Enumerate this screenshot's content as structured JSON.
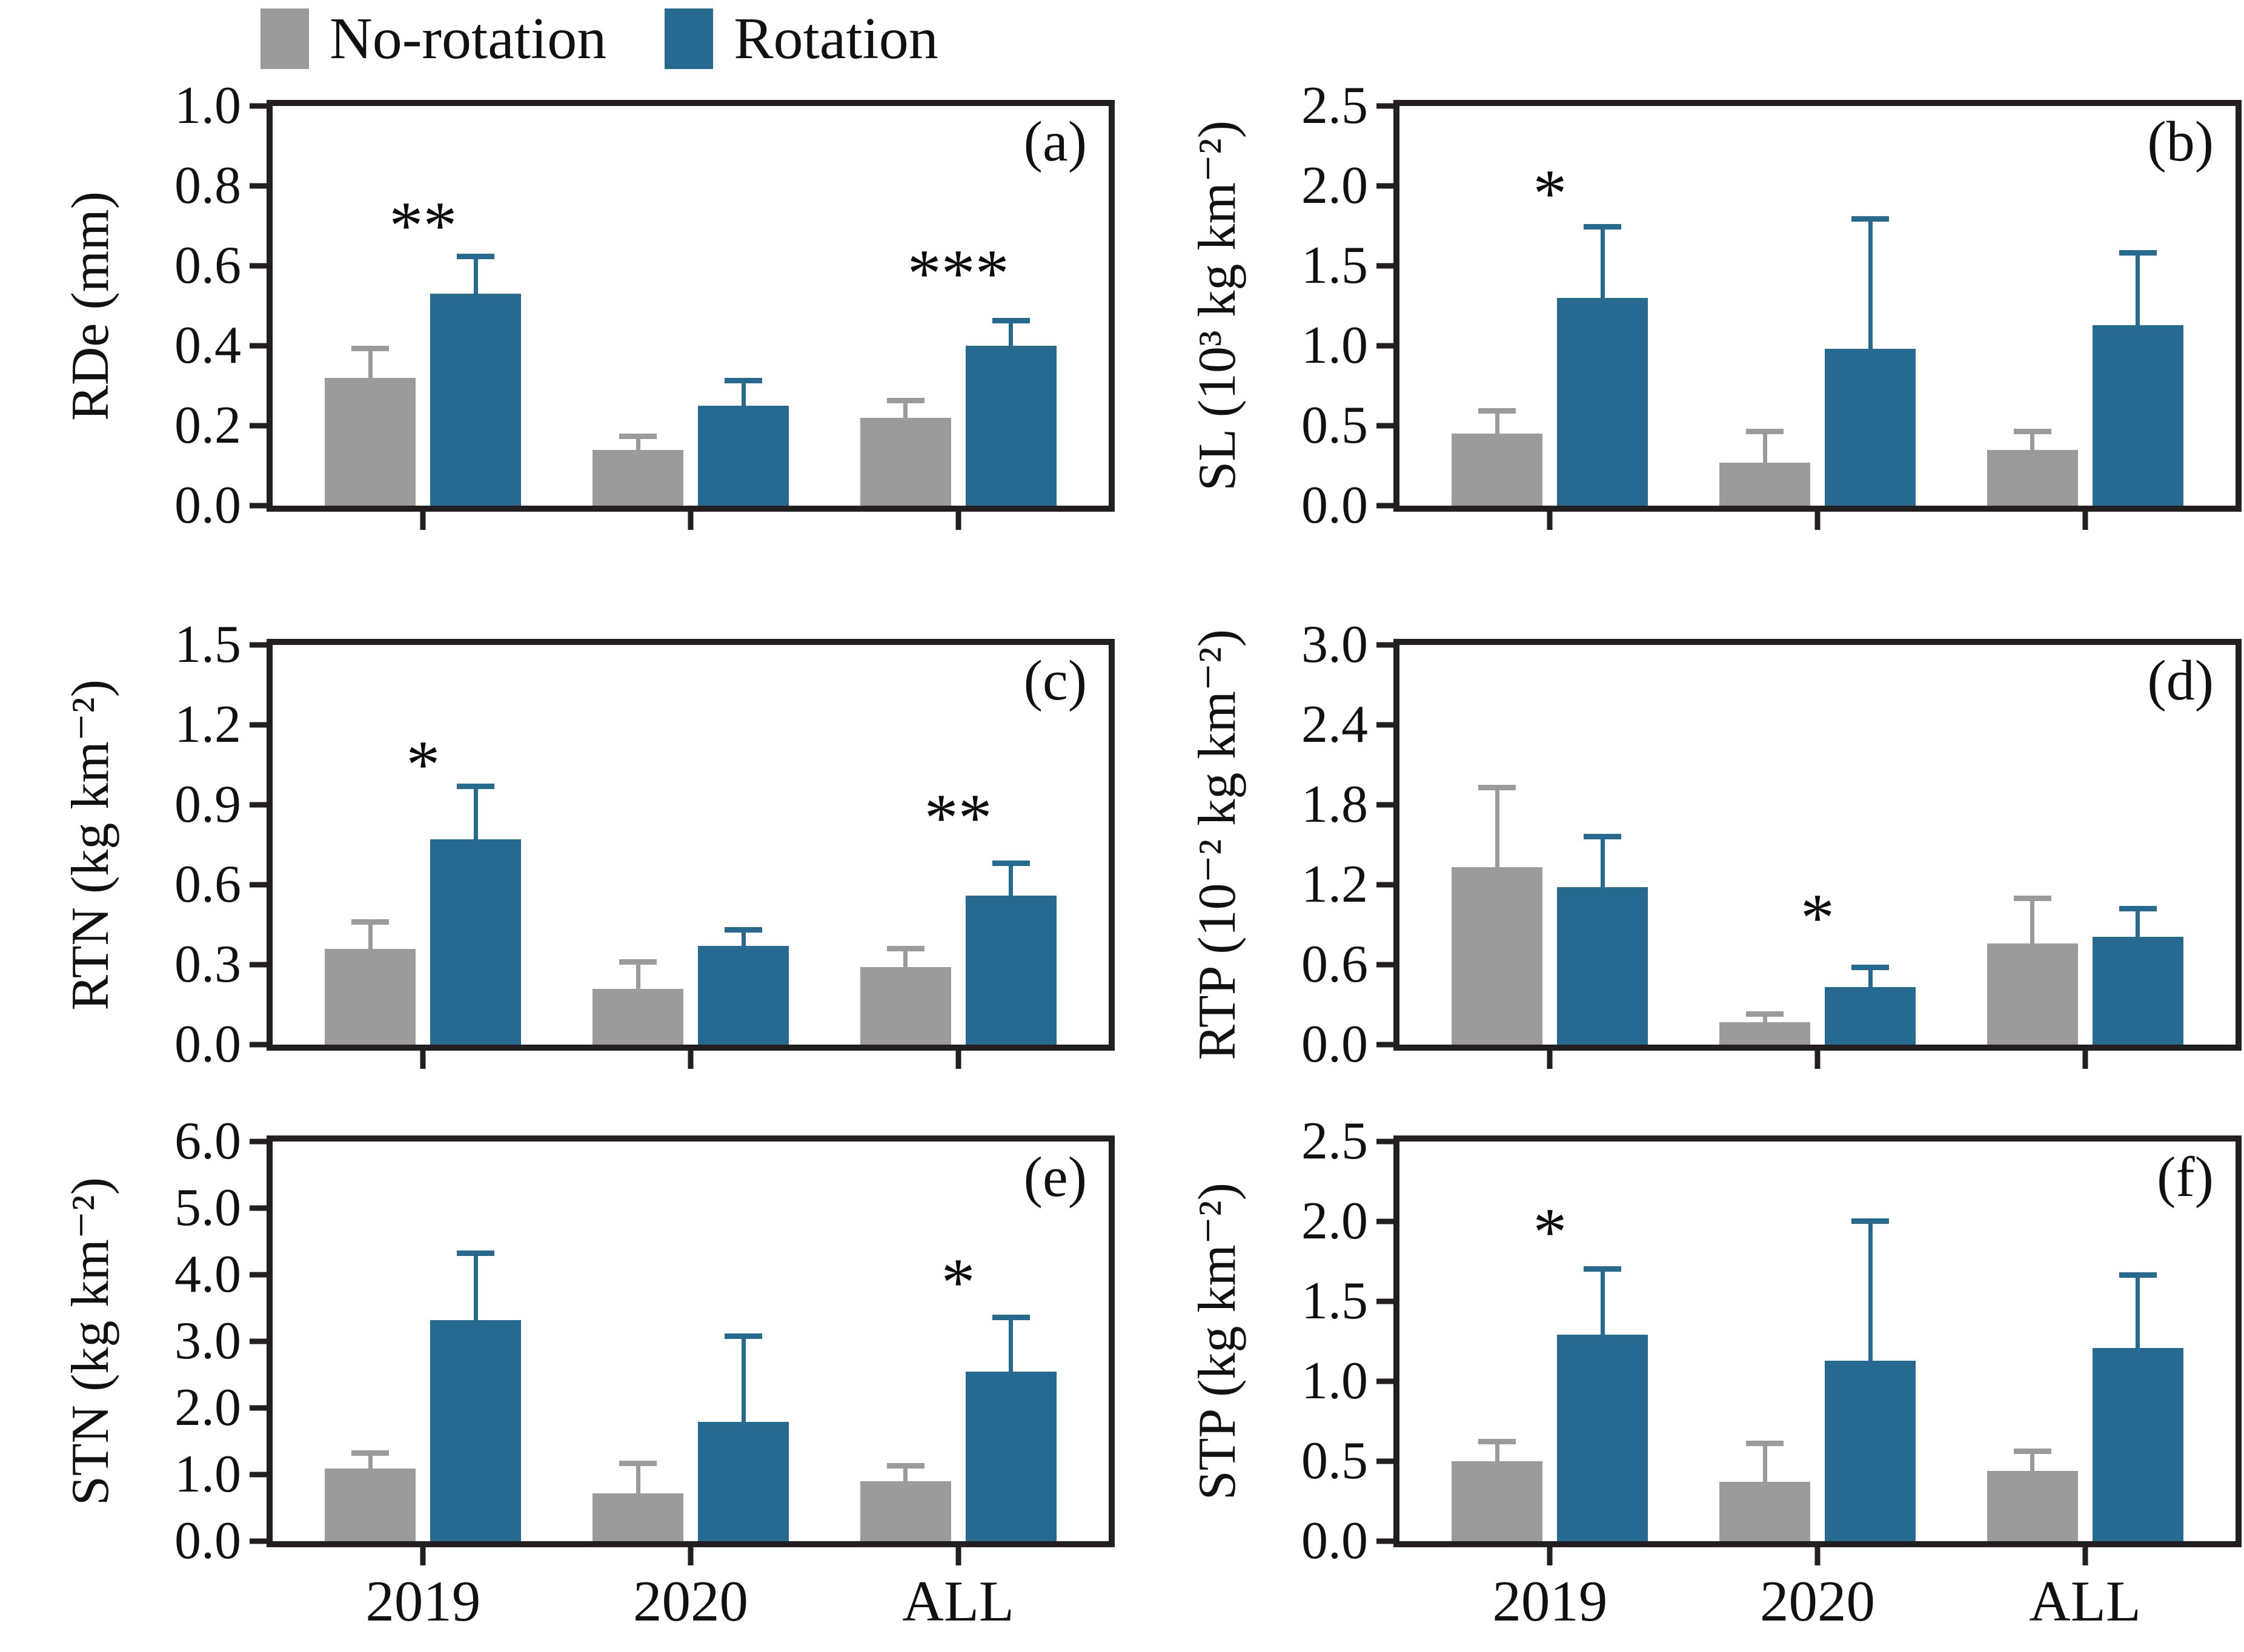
{
  "legend": {
    "items": [
      {
        "label": "No-rotation",
        "color": "#9b9b9b"
      },
      {
        "label": "Rotation",
        "color": "#266a92"
      }
    ]
  },
  "axis": {
    "frame_color": "#231f20",
    "text_color": "#111111"
  },
  "categories": [
    "2019",
    "2020",
    "ALL"
  ],
  "chart_data": [
    {
      "id": "a",
      "type": "bar",
      "panel_label": "(a)",
      "ylabel": "RDe (mm)",
      "ylim": [
        0,
        1.0
      ],
      "yticks": [
        "0.0",
        "0.2",
        "0.4",
        "0.6",
        "0.8",
        "1.0"
      ],
      "legend_position": "top-left",
      "grid": false,
      "series": [
        {
          "name": "No-rotation",
          "values": [
            0.32,
            0.14,
            0.22
          ],
          "errors": [
            0.08,
            0.04,
            0.05
          ]
        },
        {
          "name": "Rotation",
          "values": [
            0.53,
            0.25,
            0.4
          ],
          "errors": [
            0.1,
            0.07,
            0.07
          ]
        }
      ],
      "significance": [
        {
          "group": 0,
          "text": "**",
          "y": 0.7
        },
        {
          "group": 2,
          "text": "***",
          "y": 0.58
        }
      ],
      "show_xlabels": false
    },
    {
      "id": "b",
      "type": "bar",
      "panel_label": "(b)",
      "ylabel": "SL (10³ kg km⁻²)",
      "ylim": [
        0,
        2.5
      ],
      "yticks": [
        "0.0",
        "0.5",
        "1.0",
        "1.5",
        "2.0",
        "2.5"
      ],
      "grid": false,
      "series": [
        {
          "name": "No-rotation",
          "values": [
            0.45,
            0.27,
            0.35
          ],
          "errors": [
            0.16,
            0.21,
            0.13
          ]
        },
        {
          "name": "Rotation",
          "values": [
            1.3,
            0.98,
            1.13
          ],
          "errors": [
            0.46,
            0.83,
            0.47
          ]
        }
      ],
      "significance": [
        {
          "group": 0,
          "text": "*",
          "y": 1.95
        }
      ],
      "show_xlabels": false
    },
    {
      "id": "c",
      "type": "bar",
      "panel_label": "(c)",
      "ylabel": "RTN (kg km⁻²)",
      "ylim": [
        0,
        1.5
      ],
      "yticks": [
        "0.0",
        "0.3",
        "0.6",
        "0.9",
        "1.2",
        "1.5"
      ],
      "grid": false,
      "series": [
        {
          "name": "No-rotation",
          "values": [
            0.36,
            0.21,
            0.29
          ],
          "errors": [
            0.11,
            0.11,
            0.08
          ]
        },
        {
          "name": "Rotation",
          "values": [
            0.77,
            0.37,
            0.56
          ],
          "errors": [
            0.21,
            0.07,
            0.13
          ]
        }
      ],
      "significance": [
        {
          "group": 0,
          "text": "*",
          "y": 1.05
        },
        {
          "group": 2,
          "text": "**",
          "y": 0.85
        }
      ],
      "show_xlabels": false
    },
    {
      "id": "d",
      "type": "bar",
      "panel_label": "(d)",
      "ylabel": "RTP (10⁻² kg km⁻²)",
      "ylim": [
        0,
        3.0
      ],
      "yticks": [
        "0.0",
        "0.6",
        "1.2",
        "1.8",
        "2.4",
        "3.0"
      ],
      "grid": false,
      "series": [
        {
          "name": "No-rotation",
          "values": [
            1.33,
            0.17,
            0.76
          ],
          "errors": [
            0.62,
            0.08,
            0.36
          ]
        },
        {
          "name": "Rotation",
          "values": [
            1.18,
            0.43,
            0.81
          ],
          "errors": [
            0.4,
            0.17,
            0.23
          ]
        }
      ],
      "significance": [
        {
          "group": 1,
          "text": "*",
          "y": 0.95
        }
      ],
      "show_xlabels": false
    },
    {
      "id": "e",
      "type": "bar",
      "panel_label": "(e)",
      "ylabel": "STN (kg km⁻²)",
      "ylim": [
        0,
        6.0
      ],
      "yticks": [
        "0.0",
        "1.0",
        "2.0",
        "3.0",
        "4.0",
        "5.0",
        "6.0"
      ],
      "grid": false,
      "series": [
        {
          "name": "No-rotation",
          "values": [
            1.09,
            0.72,
            0.9
          ],
          "errors": [
            0.27,
            0.49,
            0.27
          ]
        },
        {
          "name": "Rotation",
          "values": [
            3.32,
            1.79,
            2.55
          ],
          "errors": [
            1.04,
            1.33,
            0.85
          ]
        }
      ],
      "significance": [
        {
          "group": 2,
          "text": "*",
          "y": 3.88
        }
      ],
      "show_xlabels": true
    },
    {
      "id": "f",
      "type": "bar",
      "panel_label": "(f)",
      "ylabel": "STP (kg km⁻²)",
      "ylim": [
        0,
        2.5
      ],
      "yticks": [
        "0.0",
        "0.5",
        "1.0",
        "1.5",
        "2.0",
        "2.5"
      ],
      "grid": false,
      "series": [
        {
          "name": "No-rotation",
          "values": [
            0.5,
            0.37,
            0.44
          ],
          "errors": [
            0.14,
            0.26,
            0.14
          ]
        },
        {
          "name": "Rotation",
          "values": [
            1.29,
            1.13,
            1.21
          ],
          "errors": [
            0.43,
            0.89,
            0.47
          ]
        }
      ],
      "significance": [
        {
          "group": 0,
          "text": "*",
          "y": 1.93
        }
      ],
      "show_xlabels": true
    }
  ]
}
